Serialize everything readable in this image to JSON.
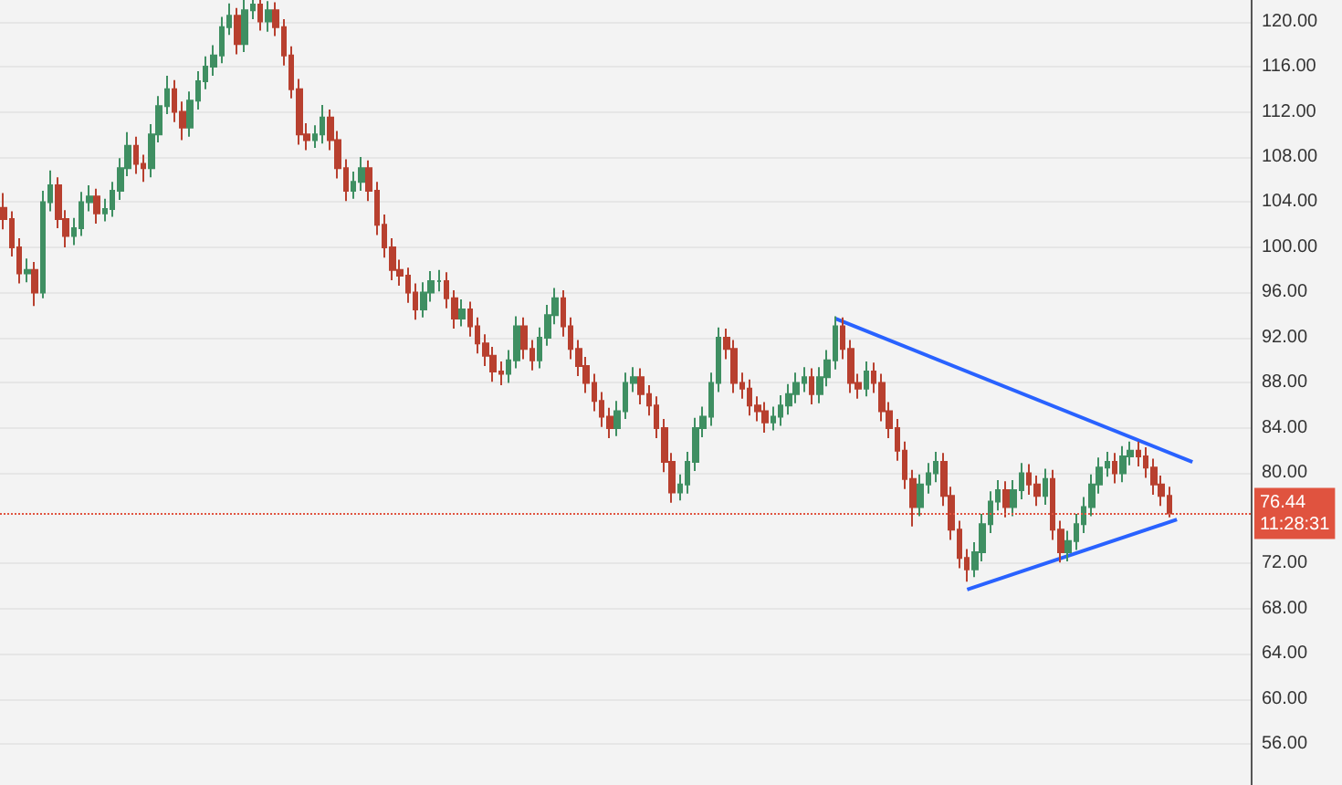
{
  "chart_data": {
    "type": "candlestick",
    "categories": [
      null,
      null,
      null,
      null,
      null,
      null,
      null,
      null,
      null,
      null,
      null,
      null,
      null,
      null,
      null,
      null,
      null,
      null,
      null,
      null,
      null,
      null,
      null,
      null,
      null,
      null,
      null,
      null,
      null,
      null,
      null,
      null,
      null,
      null,
      null,
      null,
      null,
      null,
      null,
      null,
      null,
      null,
      null,
      null,
      null,
      null,
      null,
      null,
      null,
      null,
      null,
      null,
      null,
      null,
      null,
      null,
      null,
      null,
      null,
      null,
      null,
      null,
      null,
      null,
      null,
      null,
      null,
      null,
      null,
      null,
      null,
      null,
      null,
      null,
      null,
      null,
      null,
      null,
      null,
      null,
      null,
      null,
      null,
      null,
      null,
      null,
      null,
      null,
      null,
      null,
      null,
      null,
      null,
      null,
      null,
      null,
      null,
      null,
      null,
      null,
      null,
      null,
      null,
      null,
      null,
      null,
      null,
      null,
      null,
      null,
      null,
      null,
      null,
      null,
      null,
      null,
      null,
      null,
      null,
      null,
      null,
      null,
      null,
      null,
      null,
      null,
      null,
      null,
      null,
      null,
      null,
      null,
      null,
      null,
      null,
      null,
      null,
      null,
      null,
      null,
      null,
      null,
      null,
      null,
      null,
      null,
      null,
      null,
      null,
      null,
      null,
      null,
      null,
      null,
      null,
      null,
      null,
      null,
      null,
      null,
      null
    ],
    "ohlc": [
      [
        103.5,
        104.8,
        101.6,
        102.5
      ],
      [
        102.5,
        103.2,
        99.2,
        100
      ],
      [
        100,
        100.8,
        96.8,
        97.7
      ],
      [
        97.7,
        99,
        96.9,
        98
      ],
      [
        98,
        98.7,
        94.8,
        96
      ],
      [
        96,
        105,
        95.5,
        104
      ],
      [
        104,
        106.8,
        103.2,
        105.5
      ],
      [
        105.5,
        106.2,
        101.7,
        102.5
      ],
      [
        102.5,
        103.3,
        100,
        101
      ],
      [
        101,
        102.6,
        100.2,
        101.7
      ],
      [
        101.7,
        104.9,
        101,
        104
      ],
      [
        104,
        105.5,
        103.2,
        104.5
      ],
      [
        104.5,
        105.2,
        102.1,
        103
      ],
      [
        103,
        104.3,
        102.3,
        103.4
      ],
      [
        103.4,
        105.8,
        102.7,
        105
      ],
      [
        105,
        107.9,
        104.2,
        107
      ],
      [
        107,
        110.2,
        106.3,
        109
      ],
      [
        109,
        109.8,
        106.5,
        107.4
      ],
      [
        107.4,
        108.2,
        105.8,
        107
      ],
      [
        107,
        110.9,
        106.2,
        110
      ],
      [
        110,
        113.4,
        109.3,
        112.5
      ],
      [
        112.5,
        115.2,
        111.8,
        114
      ],
      [
        114,
        114.8,
        111.1,
        112
      ],
      [
        112,
        112.9,
        109.5,
        110.6
      ],
      [
        110.6,
        113.8,
        109.8,
        113
      ],
      [
        113,
        115.6,
        112.2,
        114.7
      ],
      [
        114.7,
        116.9,
        114,
        116
      ],
      [
        116,
        117.9,
        115.2,
        117
      ],
      [
        117,
        120.4,
        116.3,
        119.5
      ],
      [
        119.5,
        121.6,
        118.8,
        120.5
      ],
      [
        120.5,
        121.2,
        117.1,
        118
      ],
      [
        118,
        122,
        117.3,
        121
      ],
      [
        121,
        122.5,
        120.2,
        121.5
      ],
      [
        121.5,
        122.3,
        119.2,
        120
      ],
      [
        120,
        121.8,
        119.1,
        121
      ],
      [
        121,
        121.7,
        118.7,
        119.5
      ],
      [
        119.5,
        120.2,
        116.1,
        117
      ],
      [
        117,
        117.8,
        113.2,
        114
      ],
      [
        114,
        114.9,
        109.1,
        110
      ],
      [
        110,
        111,
        108.6,
        109.5
      ],
      [
        109.5,
        110.8,
        108.8,
        110
      ],
      [
        110,
        112.6,
        109.2,
        111.5
      ],
      [
        111.5,
        112.2,
        108.6,
        109.5
      ],
      [
        109.5,
        110.3,
        106.1,
        107
      ],
      [
        107,
        107.8,
        104.1,
        105
      ],
      [
        105,
        106.7,
        104.3,
        105.8
      ],
      [
        105.8,
        108,
        105,
        107
      ],
      [
        107,
        107.7,
        104.1,
        105
      ],
      [
        105,
        105.8,
        101.1,
        102
      ],
      [
        102,
        102.9,
        99.1,
        100
      ],
      [
        100,
        100.8,
        97.1,
        98
      ],
      [
        98,
        98.9,
        96.6,
        97.5
      ],
      [
        97.5,
        98.2,
        95.1,
        96
      ],
      [
        96,
        96.8,
        93.6,
        94.5
      ],
      [
        94.5,
        96.9,
        93.8,
        96
      ],
      [
        96,
        97.9,
        95.2,
        97
      ],
      [
        97,
        98,
        96.1,
        97
      ],
      [
        97,
        97.8,
        94.6,
        95.5
      ],
      [
        95.5,
        96.2,
        92.8,
        93.7
      ],
      [
        93.7,
        95.4,
        93,
        94.5
      ],
      [
        94.5,
        95.2,
        92.1,
        93
      ],
      [
        93,
        93.8,
        90.6,
        91.5
      ],
      [
        91.5,
        92.3,
        89.5,
        90.4
      ],
      [
        90.4,
        91.2,
        88.1,
        89
      ],
      [
        89,
        89.9,
        87.8,
        88.8
      ],
      [
        88.8,
        90.9,
        88,
        90
      ],
      [
        90,
        93.9,
        89.3,
        93
      ],
      [
        93,
        93.8,
        90.1,
        91
      ],
      [
        91,
        91.8,
        89.1,
        90
      ],
      [
        90,
        92.9,
        89.3,
        92
      ],
      [
        92,
        94.9,
        91.3,
        94
      ],
      [
        94,
        96.4,
        93.2,
        95.5
      ],
      [
        95.5,
        96.2,
        92.1,
        93
      ],
      [
        93,
        93.8,
        90.1,
        91
      ],
      [
        91,
        91.8,
        88.6,
        89.5
      ],
      [
        89.5,
        90.3,
        87.1,
        88
      ],
      [
        88,
        88.8,
        85.5,
        86.4
      ],
      [
        86.4,
        87.2,
        84.1,
        85
      ],
      [
        85,
        85.8,
        83.1,
        84
      ],
      [
        84,
        86.4,
        83.3,
        85.5
      ],
      [
        85.5,
        88.9,
        84.8,
        88
      ],
      [
        88,
        89.4,
        87.2,
        88.5
      ],
      [
        88.5,
        89.3,
        86.1,
        87
      ],
      [
        87,
        87.8,
        85.1,
        86
      ],
      [
        86,
        86.8,
        83.1,
        84
      ],
      [
        84,
        84.8,
        80.1,
        81
      ],
      [
        81,
        81.8,
        77.4,
        78.3
      ],
      [
        78.3,
        79.9,
        77.6,
        79
      ],
      [
        79,
        81.9,
        78.2,
        81
      ],
      [
        81,
        84.9,
        80.2,
        84
      ],
      [
        84,
        85.9,
        83.2,
        85
      ],
      [
        85,
        88.9,
        84.2,
        88
      ],
      [
        88,
        92.9,
        87.2,
        92
      ],
      [
        92,
        92.8,
        90.1,
        91
      ],
      [
        91,
        91.8,
        87.1,
        88
      ],
      [
        88,
        88.9,
        86.6,
        87.5
      ],
      [
        87.5,
        88.3,
        85.1,
        86
      ],
      [
        86,
        86.8,
        84.6,
        85.5
      ],
      [
        85.5,
        86.3,
        83.6,
        84.5
      ],
      [
        84.5,
        85.9,
        83.8,
        85
      ],
      [
        85,
        86.9,
        84.2,
        86
      ],
      [
        86,
        87.9,
        85.2,
        87
      ],
      [
        87,
        88.9,
        86.2,
        88
      ],
      [
        88,
        89.4,
        87.2,
        88.5
      ],
      [
        88.5,
        89.3,
        86.1,
        87
      ],
      [
        87,
        89.4,
        86.2,
        88.5
      ],
      [
        88.5,
        90.9,
        87.7,
        90
      ],
      [
        90,
        93.9,
        89.2,
        93
      ],
      [
        93,
        93.8,
        90.1,
        91
      ],
      [
        91,
        91.8,
        87.1,
        88
      ],
      [
        88,
        88.8,
        86.6,
        87.5
      ],
      [
        87.5,
        89.9,
        86.8,
        89
      ],
      [
        89,
        89.8,
        87.1,
        88
      ],
      [
        88,
        88.8,
        84.6,
        85.5
      ],
      [
        85.5,
        86.3,
        83.1,
        84
      ],
      [
        84,
        84.8,
        81.1,
        82
      ],
      [
        82,
        82.8,
        78.6,
        79.5
      ],
      [
        79.5,
        80.3,
        75.3,
        77
      ],
      [
        77,
        79.9,
        76.2,
        79
      ],
      [
        79,
        80.9,
        78.2,
        80
      ],
      [
        80,
        81.9,
        79.2,
        81
      ],
      [
        81,
        81.8,
        77.1,
        78
      ],
      [
        78,
        78.8,
        74.1,
        75
      ],
      [
        75,
        75.8,
        71.6,
        72.5
      ],
      [
        72.5,
        73.3,
        70.4,
        71.5
      ],
      [
        71.5,
        73.9,
        70.8,
        73
      ],
      [
        73,
        76.4,
        72.2,
        75.5
      ],
      [
        75.5,
        78.4,
        74.7,
        77.5
      ],
      [
        77.5,
        79.4,
        76.7,
        78.5
      ],
      [
        78.5,
        79.3,
        76.1,
        77
      ],
      [
        77,
        79.4,
        76.2,
        78.5
      ],
      [
        78.5,
        80.9,
        77.7,
        80
      ],
      [
        80,
        80.8,
        78.1,
        79
      ],
      [
        79,
        79.8,
        77.1,
        78
      ],
      [
        78,
        80.4,
        77.2,
        79.5
      ],
      [
        79.5,
        80.3,
        74.1,
        75
      ],
      [
        75,
        75.8,
        72.1,
        73
      ],
      [
        73,
        74.9,
        72.2,
        74
      ],
      [
        74,
        76.4,
        73.2,
        75.5
      ],
      [
        75.5,
        77.9,
        74.7,
        77
      ],
      [
        77,
        79.9,
        76.2,
        79
      ],
      [
        79,
        81.4,
        78.2,
        80.5
      ],
      [
        80.5,
        81.9,
        79.7,
        81
      ],
      [
        81,
        81.8,
        79.1,
        80
      ],
      [
        80,
        82.4,
        79.2,
        81.5
      ],
      [
        81.5,
        82.8,
        80.7,
        82
      ],
      [
        82,
        82.8,
        80.6,
        81.5
      ],
      [
        81.5,
        82.3,
        79.6,
        80.5
      ],
      [
        80.5,
        81.3,
        78.1,
        79
      ],
      [
        79,
        79.8,
        77.1,
        78
      ],
      [
        78,
        78.8,
        76.1,
        76.44
      ],
      null,
      null,
      null,
      null,
      null,
      null,
      null,
      null,
      null,
      null
    ],
    "series": [
      {
        "type": "line",
        "color": "#2962ff",
        "values": [
          null,
          null,
          null,
          null,
          null,
          null,
          null,
          null,
          null,
          null,
          null,
          null,
          null,
          null,
          null,
          null,
          null,
          null,
          null,
          null,
          null,
          null,
          null,
          null,
          null,
          null,
          null,
          null,
          null,
          null,
          null,
          null,
          null,
          null,
          null,
          null,
          null,
          null,
          null,
          null,
          null,
          null,
          null,
          null,
          null,
          null,
          null,
          null,
          null,
          null,
          null,
          null,
          null,
          null,
          null,
          null,
          null,
          null,
          null,
          null,
          null,
          null,
          null,
          null,
          null,
          null,
          null,
          null,
          null,
          null,
          null,
          null,
          null,
          null,
          null,
          null,
          null,
          null,
          null,
          null,
          null,
          null,
          null,
          null,
          null,
          null,
          null,
          null,
          null,
          null,
          null,
          null,
          null,
          null,
          null,
          null,
          null,
          null,
          null,
          null,
          null,
          null,
          null,
          null,
          null,
          null,
          null,
          93.7,
          null,
          null,
          null,
          null,
          null,
          null,
          null,
          null,
          null,
          null,
          null,
          null,
          null,
          null,
          null,
          null,
          null,
          null,
          null,
          null,
          null,
          null,
          null,
          null,
          null,
          null,
          null,
          null,
          null,
          null,
          null,
          null,
          null,
          null,
          null,
          null,
          null,
          null,
          null,
          null,
          null,
          null,
          null,
          null,
          null,
          81.0,
          null,
          null,
          null,
          null,
          null,
          null,
          null
        ]
      },
      {
        "type": "line",
        "color": "#2962ff",
        "values": [
          null,
          null,
          null,
          null,
          null,
          null,
          null,
          null,
          null,
          null,
          null,
          null,
          null,
          null,
          null,
          null,
          null,
          null,
          null,
          null,
          null,
          null,
          null,
          null,
          null,
          null,
          null,
          null,
          null,
          null,
          null,
          null,
          null,
          null,
          null,
          null,
          null,
          null,
          null,
          null,
          null,
          null,
          null,
          null,
          null,
          null,
          null,
          null,
          null,
          null,
          null,
          null,
          null,
          null,
          null,
          null,
          null,
          null,
          null,
          null,
          null,
          null,
          null,
          null,
          null,
          null,
          null,
          null,
          null,
          null,
          null,
          null,
          null,
          null,
          null,
          null,
          null,
          null,
          null,
          null,
          null,
          null,
          null,
          null,
          null,
          null,
          null,
          null,
          null,
          null,
          null,
          null,
          null,
          null,
          null,
          null,
          null,
          null,
          null,
          null,
          null,
          null,
          null,
          null,
          null,
          null,
          null,
          null,
          null,
          null,
          null,
          null,
          null,
          null,
          null,
          null,
          null,
          null,
          null,
          null,
          null,
          null,
          null,
          null,
          69.7,
          null,
          null,
          null,
          null,
          null,
          null,
          null,
          null,
          null,
          null,
          null,
          null,
          null,
          null,
          null,
          null,
          null,
          null,
          null,
          null,
          null,
          null,
          null,
          null,
          null,
          null,
          75.9,
          null,
          null,
          null,
          null,
          null,
          null,
          null,
          null,
          null
        ]
      }
    ],
    "ylim": [
      52.4,
      121.9
    ],
    "yticks": [
      {
        "value": 56,
        "label": "56.00"
      },
      {
        "value": 60,
        "label": "60.00"
      },
      {
        "value": 64,
        "label": "64.00"
      },
      {
        "value": 68,
        "label": "68.00"
      },
      {
        "value": 72,
        "label": "72.00"
      },
      {
        "value": 80,
        "label": "80.00"
      },
      {
        "value": 84,
        "label": "84.00"
      },
      {
        "value": 88,
        "label": "88.00"
      },
      {
        "value": 92,
        "label": "92.00"
      },
      {
        "value": 96,
        "label": "96.00"
      },
      {
        "value": 100,
        "label": "100.00"
      },
      {
        "value": 104,
        "label": "104.00"
      },
      {
        "value": 108,
        "label": "108.00"
      },
      {
        "value": 112,
        "label": "112.00"
      },
      {
        "value": 116,
        "label": "116.00"
      },
      {
        "value": 120,
        "label": "120.00"
      }
    ],
    "ref_lines": [
      {
        "axis": "y",
        "value": 76.44,
        "label": "76.44",
        "color": "#e0533f",
        "line_style": "dotted"
      }
    ],
    "annotations": [
      "11:28:31"
    ],
    "grid": "y",
    "tick_labels": "y"
  }
}
